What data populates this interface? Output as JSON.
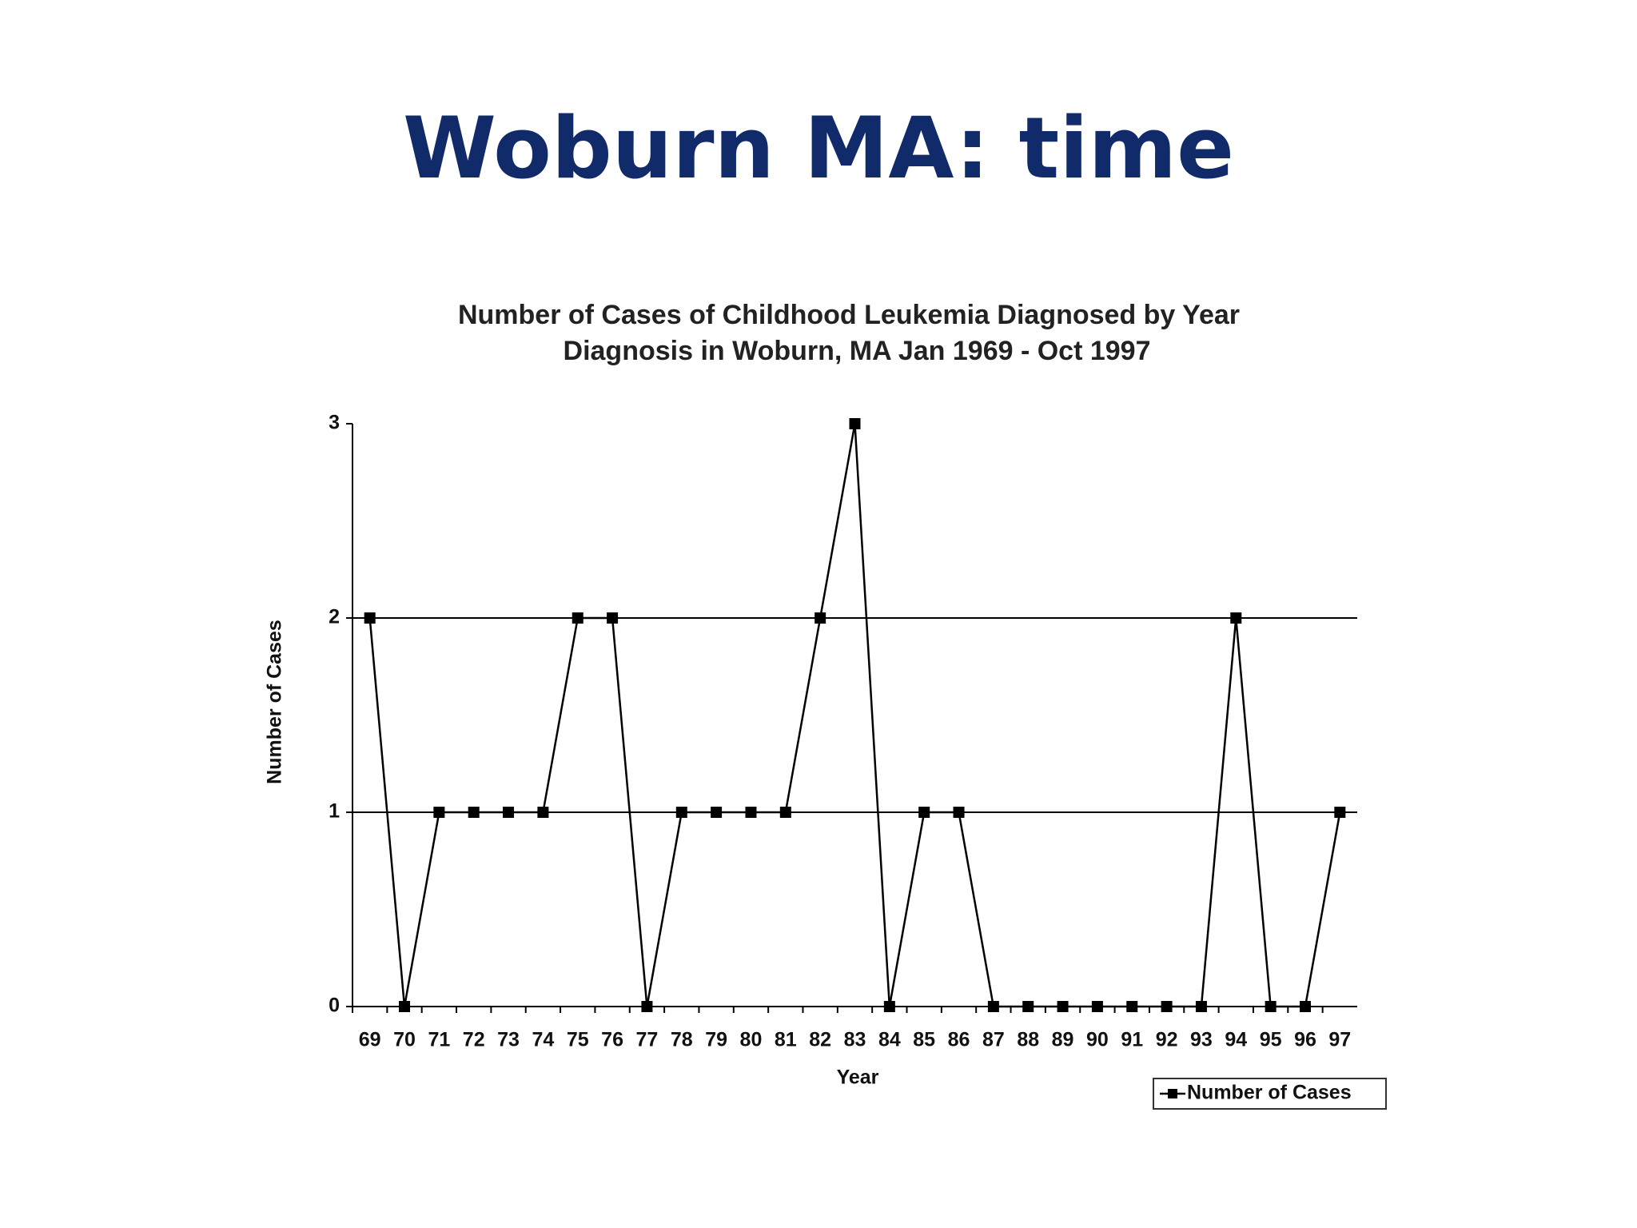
{
  "slide_title": "Woburn MA: time",
  "chart_data": {
    "type": "line",
    "title": [
      "Number of Cases of Childhood Leukemia Diagnosed by Year",
      "Diagnosis in Woburn, MA  Jan 1969  - Oct 1997"
    ],
    "x_label": "Year",
    "y_label": "Number of Cases",
    "categories": [
      "69",
      "70",
      "71",
      "72",
      "73",
      "74",
      "75",
      "76",
      "77",
      "78",
      "79",
      "80",
      "81",
      "82",
      "83",
      "84",
      "85",
      "86",
      "87",
      "88",
      "89",
      "90",
      "91",
      "92",
      "93",
      "94",
      "95",
      "96",
      "97"
    ],
    "series": [
      {
        "name": "Number of Cases",
        "color": "#000000",
        "values": [
          2,
          0,
          1,
          1,
          1,
          1,
          2,
          2,
          0,
          1,
          1,
          1,
          1,
          2,
          3,
          0,
          1,
          1,
          0,
          0,
          0,
          0,
          0,
          0,
          0,
          2,
          0,
          0,
          1
        ]
      }
    ],
    "ylim": [
      0,
      3
    ],
    "yticks": [
      0,
      1,
      2,
      3
    ],
    "grid": true,
    "legend": "bottom-right"
  }
}
